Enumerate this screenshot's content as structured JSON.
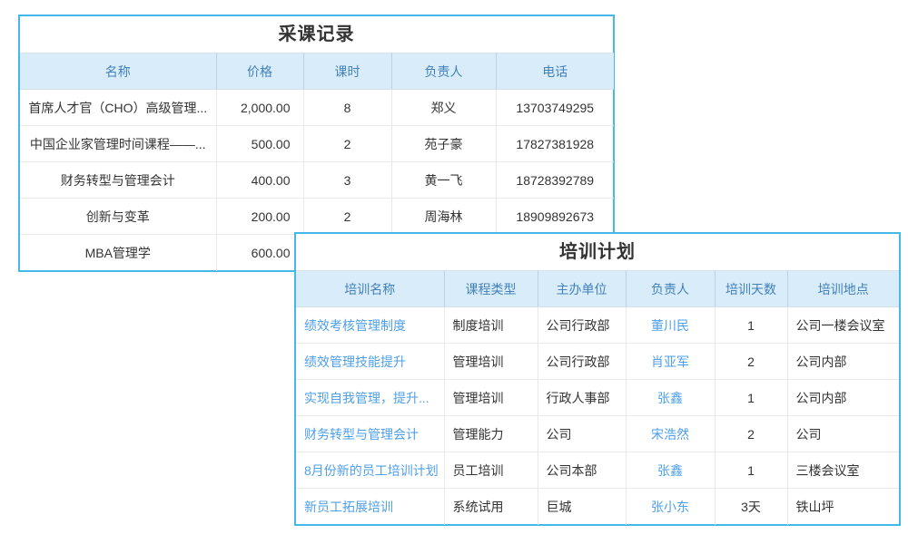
{
  "colors": {
    "card_border": "#44b8e8",
    "header_bg": "#d9ecf9",
    "header_text": "#4381b8",
    "link": "#4e9fe9",
    "body_text": "#333333",
    "title_text": "#333333"
  },
  "purchase_table": {
    "title": "采课记录",
    "columns": [
      "名称",
      "价格",
      "课时",
      "负责人",
      "电话"
    ],
    "rows": [
      [
        "首席人才官（CHO）高级管理...",
        "2,000.00",
        "8",
        "郑义",
        "13703749295"
      ],
      [
        "中国企业家管理时间课程——...",
        "500.00",
        "2",
        "苑子豪",
        "17827381928"
      ],
      [
        "财务转型与管理会计",
        "400.00",
        "3",
        "黄一飞",
        "18728392789"
      ],
      [
        "创新与变革",
        "200.00",
        "2",
        "周海林",
        "18909892673"
      ],
      [
        "MBA管理学",
        "600.00",
        "",
        "",
        ""
      ]
    ]
  },
  "training_table": {
    "title": "培训计划",
    "columns": [
      "培训名称",
      "课程类型",
      "主办单位",
      "负责人",
      "培训天数",
      "培训地点"
    ],
    "rows": [
      [
        "绩效考核管理制度",
        "制度培训",
        "公司行政部",
        "董川民",
        "1",
        "公司一楼会议室"
      ],
      [
        "绩效管理技能提升",
        "管理培训",
        "公司行政部",
        "肖亚军",
        "2",
        "公司内部"
      ],
      [
        "实现自我管理，提升...",
        "管理培训",
        "行政人事部",
        "张鑫",
        "1",
        "公司内部"
      ],
      [
        "财务转型与管理会计",
        "管理能力",
        "公司",
        "宋浩然",
        "2",
        "公司"
      ],
      [
        "8月份新的员工培训计划",
        "员工培训",
        "公司本部",
        "张鑫",
        "1",
        "三楼会议室"
      ],
      [
        "新员工拓展培训",
        "系统试用",
        "巨城",
        "张小东",
        "3天",
        "铁山坪"
      ]
    ]
  }
}
